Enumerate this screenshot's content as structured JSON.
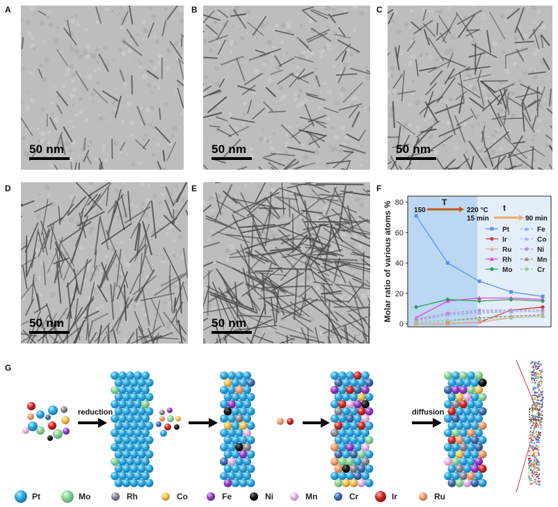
{
  "panel_labels": {
    "a": "A",
    "b": "B",
    "c": "C",
    "d": "D",
    "e": "E",
    "f": "F",
    "g": "G"
  },
  "scale_bar": "50 nm",
  "chart_data": {
    "type": "line",
    "ylabel": "Molar ratio of various atoms %",
    "xlabel": "",
    "ylim": [
      -2,
      84
    ],
    "yticks": [
      0,
      20,
      40,
      60,
      80
    ],
    "x": [
      0,
      1,
      2,
      3,
      4
    ],
    "annotations": {
      "temp_label": "T",
      "temp_start": "150",
      "temp_end": "220 °C",
      "time_label": "t",
      "time_start": "15 min",
      "time_end": "90 min"
    },
    "series": [
      {
        "name": "Pt",
        "color": "#5b8ff0",
        "dash": false,
        "marker": "square",
        "values": [
          71,
          40,
          28,
          21,
          18
        ]
      },
      {
        "name": "Ir",
        "color": "#c23b3b",
        "dash": false,
        "marker": "circle",
        "values": [
          0,
          0,
          1,
          9,
          11
        ]
      },
      {
        "name": "Ru",
        "color": "#e8a98a",
        "dash": false,
        "marker": "triangle",
        "values": [
          0,
          0,
          1,
          4,
          5
        ]
      },
      {
        "name": "Rh",
        "color": "#e63ce6",
        "dash": false,
        "marker": "triangle",
        "values": [
          4,
          15,
          17,
          17,
          16
        ]
      },
      {
        "name": "Mo",
        "color": "#2d9a5a",
        "dash": false,
        "marker": "diamond",
        "values": [
          11,
          16,
          15,
          16,
          15
        ]
      },
      {
        "name": "Fe",
        "color": "#8da9d6",
        "dash": true,
        "marker": "triangle",
        "values": [
          2,
          6,
          8,
          8,
          8
        ]
      },
      {
        "name": "Co",
        "color": "#a9b4e8",
        "dash": true,
        "marker": "triangle",
        "values": [
          3,
          6,
          7,
          8,
          8
        ]
      },
      {
        "name": "Ni",
        "color": "#b890c6",
        "dash": true,
        "marker": "circle",
        "values": [
          3,
          7,
          9,
          9,
          9
        ]
      },
      {
        "name": "Mn",
        "color": "#9a8470",
        "dash": true,
        "marker": "triangle",
        "values": [
          1,
          2,
          4,
          5,
          6
        ]
      },
      {
        "name": "Cr",
        "color": "#9fc69a",
        "dash": true,
        "marker": "circle",
        "values": [
          1,
          2,
          3,
          4,
          5
        ]
      }
    ]
  },
  "diagram": {
    "step_labels": [
      "reduction",
      "diffusion"
    ],
    "legend": [
      {
        "name": "Pt",
        "color": "#2fa9e0"
      },
      {
        "name": "Mo",
        "color": "#8fd39a"
      },
      {
        "name": "Rh",
        "color": "#8a8a96"
      },
      {
        "name": "Co",
        "color": "#f2c55a"
      },
      {
        "name": "Fe",
        "color": "#9a3cc8"
      },
      {
        "name": "Ni",
        "color": "#1a1a1a"
      },
      {
        "name": "Mn",
        "color": "#e6b8e6"
      },
      {
        "name": "Cr",
        "color": "#3f6fb0"
      },
      {
        "name": "Ir",
        "color": "#d42a2a"
      },
      {
        "name": "Ru",
        "color": "#f0a070"
      }
    ]
  }
}
